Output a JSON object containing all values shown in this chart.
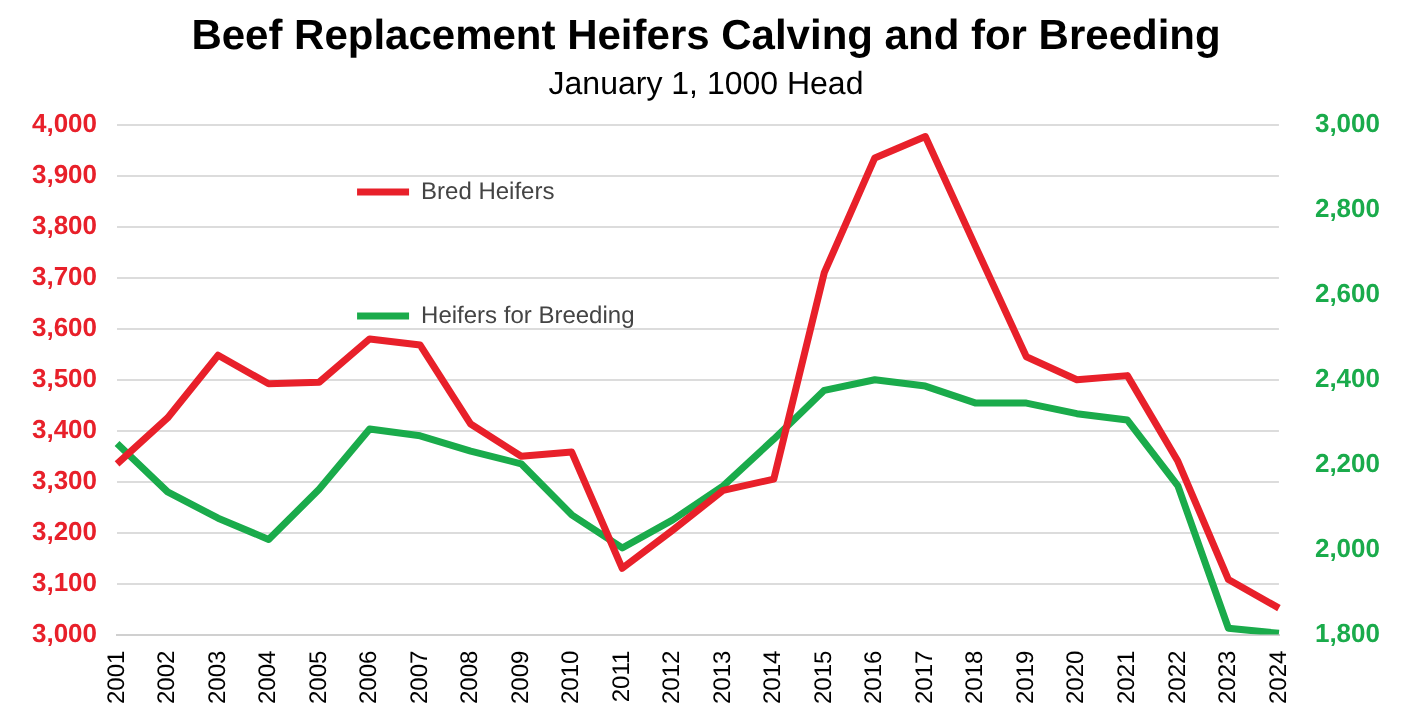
{
  "chart_data": {
    "type": "line",
    "title": "Beef Replacement Heifers Calving and for Breeding",
    "subtitle": "January 1, 1000 Head",
    "categories": [
      "2001",
      "2002",
      "2003",
      "2004",
      "2005",
      "2006",
      "2007",
      "2008",
      "2009",
      "2010",
      "2011",
      "2012",
      "2013",
      "2014",
      "2015",
      "2016",
      "2017",
      "2018",
      "2019",
      "2020",
      "2021",
      "2022",
      "2023",
      "2024"
    ],
    "series": [
      {
        "name": "Bred Heifers",
        "color": "#e8202a",
        "values": [
          3335,
          3425,
          3548,
          3492,
          3495,
          3580,
          3568,
          3413,
          3350,
          3358,
          3130,
          3205,
          3283,
          3305,
          3710,
          3935,
          3977,
          3760,
          3545,
          3500,
          3508,
          3340,
          3108,
          3052
        ]
      },
      {
        "name": "Heifers for Breeding",
        "color": "#1aab4b",
        "axis": "y2",
        "values": [
          2250,
          2136,
          2074,
          2024,
          2142,
          2284,
          2268,
          2232,
          2202,
          2082,
          2004,
          2070,
          2150,
          2260,
          2375,
          2400,
          2385,
          2345,
          2345,
          2320,
          2305,
          2150,
          1815,
          1803
        ]
      }
    ],
    "ylim": [
      3000,
      4000
    ],
    "yticks": [
      {
        "value": 3000,
        "label": "3,000"
      },
      {
        "value": 3100,
        "label": "3,100"
      },
      {
        "value": 3200,
        "label": "3,200"
      },
      {
        "value": 3300,
        "label": "3,300"
      },
      {
        "value": 3400,
        "label": "3,400"
      },
      {
        "value": 3500,
        "label": "3,500"
      },
      {
        "value": 3600,
        "label": "3,600"
      },
      {
        "value": 3700,
        "label": "3,700"
      },
      {
        "value": 3800,
        "label": "3,800"
      },
      {
        "value": 3900,
        "label": "3,900"
      },
      {
        "value": 4000,
        "label": "4,000"
      }
    ],
    "y2lim": [
      1800,
      3000
    ],
    "y2ticks": [
      {
        "value": 1800,
        "label": "1,800"
      },
      {
        "value": 2000,
        "label": "2,000"
      },
      {
        "value": 2200,
        "label": "2,200"
      },
      {
        "value": 2400,
        "label": "2,400"
      },
      {
        "value": 2600,
        "label": "2,600"
      },
      {
        "value": 2800,
        "label": "2,800"
      },
      {
        "value": 3000,
        "label": "3,000"
      }
    ],
    "grid": "y",
    "legend": "top left",
    "marker": "none",
    "line_style": "solid"
  }
}
